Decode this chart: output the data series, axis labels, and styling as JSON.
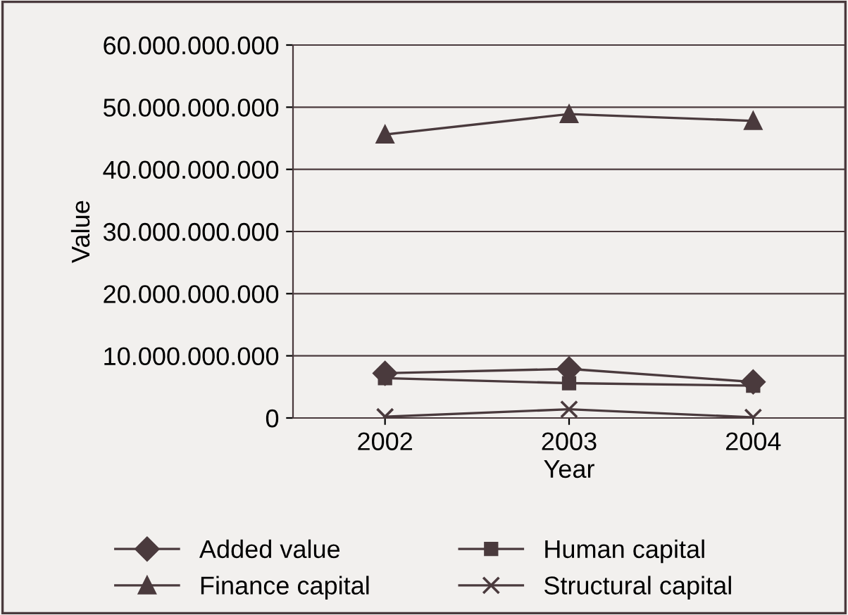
{
  "chart_data": {
    "type": "line",
    "xlabel": "Year",
    "ylabel": "Value",
    "categories": [
      "2002",
      "2003",
      "2004"
    ],
    "series": [
      {
        "name": "Added value",
        "color": "#4a3a3d",
        "marker": "diamond",
        "values": [
          7200000000,
          7900000000,
          5800000000
        ]
      },
      {
        "name": "Human capital",
        "color": "#4a3a3d",
        "marker": "square",
        "values": [
          6400000000,
          5600000000,
          5200000000
        ]
      },
      {
        "name": "Finance capital",
        "color": "#4a3a3d",
        "marker": "triangle",
        "values": [
          45600000000,
          48900000000,
          47800000000
        ]
      },
      {
        "name": "Structural capital",
        "color": "#4a3a3d",
        "marker": "cross",
        "values": [
          200000000,
          1400000000,
          100000000
        ]
      }
    ],
    "ylim": [
      0,
      60000000000
    ],
    "yticks": [
      {
        "value": 0,
        "label": "0"
      },
      {
        "value": 10000000000,
        "label": "10.000.000.000"
      },
      {
        "value": 20000000000,
        "label": "20.000.000.000"
      },
      {
        "value": 30000000000,
        "label": "30.000.000.000"
      },
      {
        "value": 40000000000,
        "label": "40.000.000.000"
      },
      {
        "value": 50000000000,
        "label": "50.000.000.000"
      },
      {
        "value": 60000000000,
        "label": "60.000.000.000"
      }
    ],
    "grid": "y",
    "legend": "bottom",
    "line_style": "solid"
  }
}
